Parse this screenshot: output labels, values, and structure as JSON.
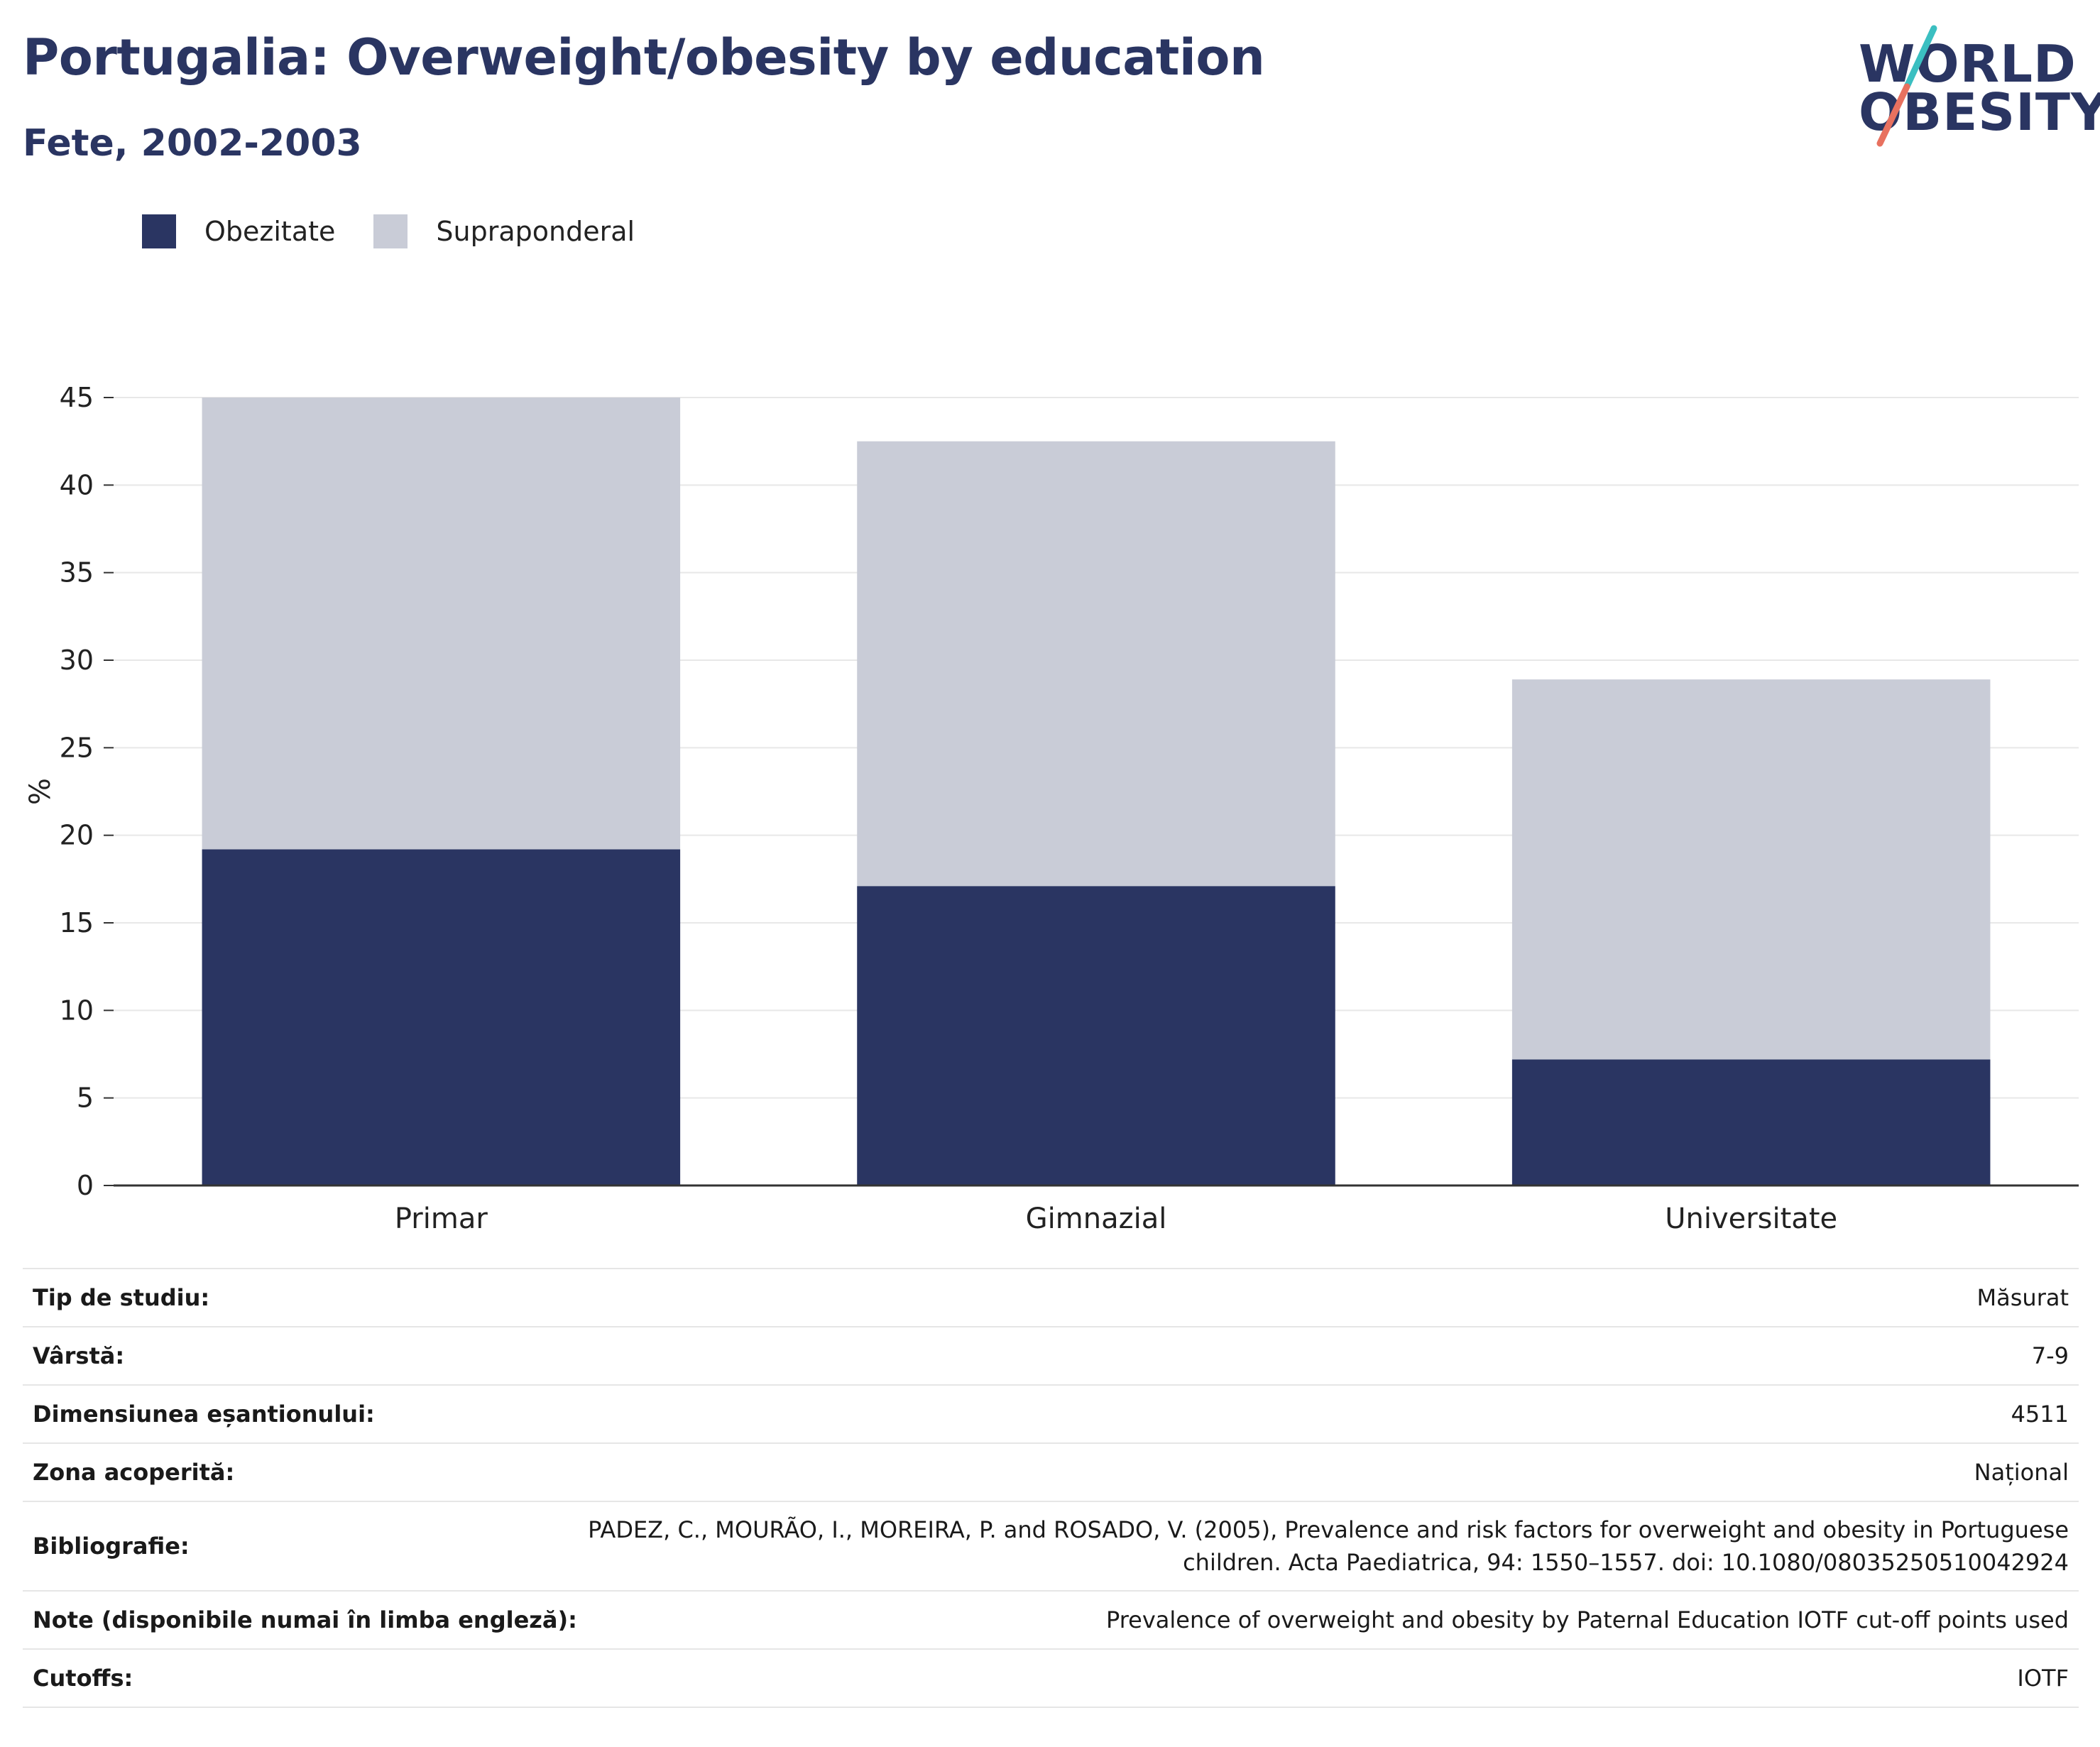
{
  "header": {
    "title": "Portugalia: Overweight/obesity by education",
    "subtitle": "Fete, 2002-2003"
  },
  "logo": {
    "line1": "WORLD",
    "line2": "OBESITY",
    "accent_colors": [
      "#3bbfc1",
      "#e8715f"
    ]
  },
  "colors": {
    "obesity": "#2a3562",
    "overweight": "#c9ccd7",
    "axis": "#333333",
    "grid": "#e8e8e8"
  },
  "chart_data": {
    "type": "bar",
    "stacked": true,
    "categories": [
      "Primar",
      "Gimnazial",
      "Universitate"
    ],
    "series": [
      {
        "name": "Obezitate",
        "values": [
          19.2,
          17.1,
          7.2
        ]
      },
      {
        "name": "Supraponderal",
        "values": [
          25.8,
          25.4,
          21.7
        ]
      }
    ],
    "title": "Portugalia: Overweight/obesity by education",
    "subtitle": "Fete, 2002-2003",
    "xlabel": "",
    "ylabel": "%",
    "ylim": [
      0,
      45
    ],
    "yticks": [
      0,
      5,
      10,
      15,
      20,
      25,
      30,
      35,
      40,
      45
    ],
    "grid": true,
    "legend": "top-left"
  },
  "meta": [
    {
      "label": "Tip de studiu:",
      "value": "Măsurat"
    },
    {
      "label": "Vârstă:",
      "value": "7-9"
    },
    {
      "label": "Dimensiunea eșantionului:",
      "value": "4511"
    },
    {
      "label": "Zona acoperită:",
      "value": "Național"
    },
    {
      "label": "Bibliografie:",
      "value": "PADEZ, C., MOURÃO, I., MOREIRA, P. and ROSADO, V. (2005), Prevalence and risk factors for overweight and obesity in Portuguese children. Acta Paediatrica, 94: 1550–1557. doi: 10.1080/08035250510042924"
    },
    {
      "label": "Note (disponibile numai în limba engleză):",
      "value": "Prevalence of overweight and obesity by Paternal Education IOTF cut-off points used"
    },
    {
      "label": "Cutoffs:",
      "value": "IOTF"
    }
  ]
}
